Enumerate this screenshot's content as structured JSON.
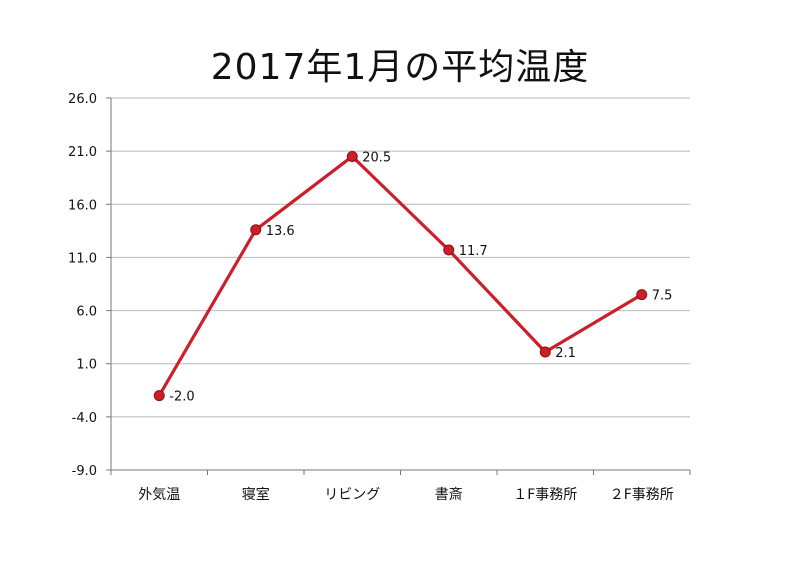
{
  "chart_data": {
    "type": "line",
    "title": "2017年1月の平均温度",
    "xlabel": "",
    "ylabel": "",
    "categories": [
      "外気温",
      "寝室",
      "リビング",
      "書斎",
      "１F事務所",
      "２F事務所"
    ],
    "series": [
      {
        "values": [
          -2.0,
          13.6,
          20.5,
          11.7,
          2.1,
          7.5
        ],
        "color": "#cc1f2a"
      }
    ],
    "data_labels": [
      "-2.0",
      "13.6",
      "20.5",
      "11.7",
      "2.1",
      "7.5"
    ],
    "ylim": [
      -9.0,
      26.0
    ],
    "yticks": [
      "-9.0",
      "-4.0",
      "1.0",
      "6.0",
      "11.0",
      "16.0",
      "21.0",
      "26.0"
    ],
    "grid": true,
    "legend": "none"
  }
}
